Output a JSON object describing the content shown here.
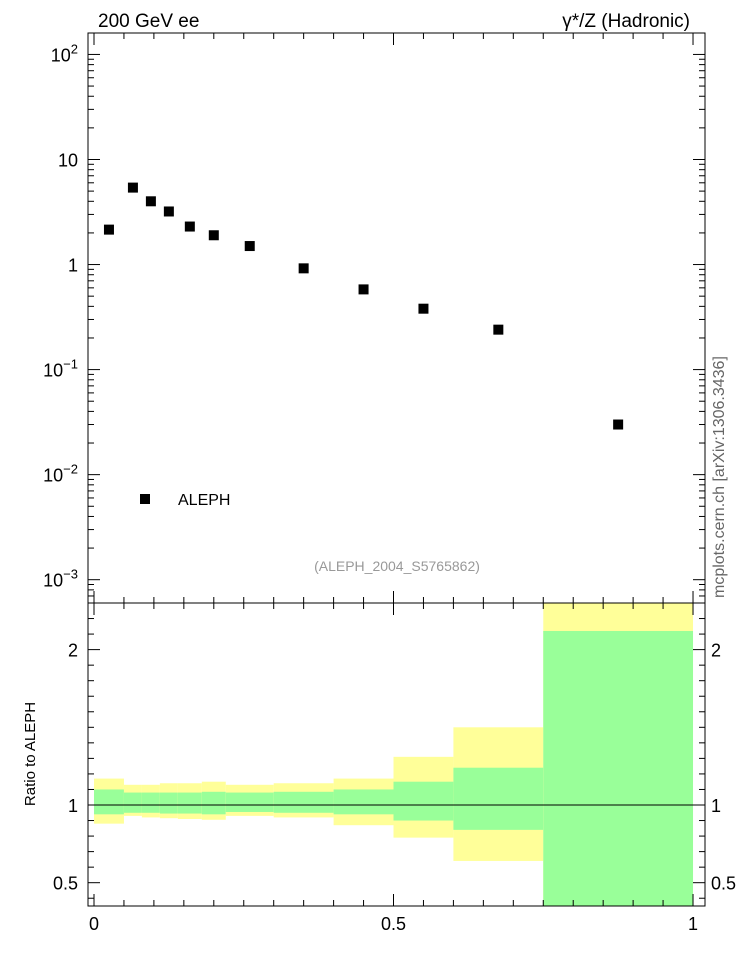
{
  "header": {
    "left": "200 GeV ee",
    "right": "γ*/Z (Hadronic)"
  },
  "side_label": "mcplots.cern.ch [arXiv:1306.3436]",
  "watermark": "(ALEPH_2004_S5765862)",
  "legend": {
    "entry": "ALEPH"
  },
  "ratio_ylabel": "Ratio to ALEPH",
  "colors": {
    "inner_band": "#99ff99",
    "outer_band": "#ffff99",
    "marker": "#000000"
  },
  "chart_data": [
    {
      "type": "scatter",
      "yscale": "log",
      "ylim": [
        0.0006,
        160
      ],
      "xlim": [
        -0.01,
        1.02
      ],
      "y_tick_labels": [
        "10^-3",
        "10^-2",
        "10^-1",
        "1",
        "10",
        "10^2"
      ],
      "series": [
        {
          "name": "ALEPH",
          "x": [
            0.025,
            0.065,
            0.095,
            0.125,
            0.16,
            0.2,
            0.26,
            0.35,
            0.45,
            0.55,
            0.675,
            0.875
          ],
          "y": [
            2.15,
            5.4,
            4.0,
            3.2,
            2.3,
            1.9,
            1.5,
            0.92,
            0.58,
            0.38,
            0.24,
            0.03
          ]
        }
      ]
    },
    {
      "type": "area",
      "ylabel": "Ratio to ALEPH",
      "ylim": [
        0.35,
        2.3
      ],
      "xlim": [
        -0.01,
        1.02
      ],
      "x_tick_labels": [
        "0",
        "0.5",
        "1"
      ],
      "y_tick_labels": [
        "0.5",
        "1",
        "2"
      ],
      "bins": [
        {
          "x0": 0.0,
          "x1": 0.05,
          "inner": [
            0.94,
            1.1
          ],
          "outer": [
            0.88,
            1.17
          ]
        },
        {
          "x0": 0.05,
          "x1": 0.08,
          "inner": [
            0.95,
            1.08
          ],
          "outer": [
            0.93,
            1.13
          ]
        },
        {
          "x0": 0.08,
          "x1": 0.11,
          "inner": [
            0.95,
            1.08
          ],
          "outer": [
            0.92,
            1.13
          ]
        },
        {
          "x0": 0.11,
          "x1": 0.14,
          "inner": [
            0.945,
            1.08
          ],
          "outer": [
            0.915,
            1.14
          ]
        },
        {
          "x0": 0.14,
          "x1": 0.18,
          "inner": [
            0.945,
            1.08
          ],
          "outer": [
            0.91,
            1.14
          ]
        },
        {
          "x0": 0.18,
          "x1": 0.22,
          "inner": [
            0.94,
            1.085
          ],
          "outer": [
            0.905,
            1.15
          ]
        },
        {
          "x0": 0.22,
          "x1": 0.3,
          "inner": [
            0.955,
            1.08
          ],
          "outer": [
            0.93,
            1.13
          ]
        },
        {
          "x0": 0.3,
          "x1": 0.4,
          "inner": [
            0.95,
            1.085
          ],
          "outer": [
            0.92,
            1.14
          ]
        },
        {
          "x0": 0.4,
          "x1": 0.5,
          "inner": [
            0.94,
            1.1
          ],
          "outer": [
            0.87,
            1.17
          ]
        },
        {
          "x0": 0.5,
          "x1": 0.6,
          "inner": [
            0.9,
            1.15
          ],
          "outer": [
            0.79,
            1.31
          ]
        },
        {
          "x0": 0.6,
          "x1": 0.75,
          "inner": [
            0.84,
            1.24
          ],
          "outer": [
            0.64,
            1.5
          ]
        },
        {
          "x0": 0.75,
          "x1": 1.0,
          "inner": [
            0.35,
            2.12
          ],
          "outer": [
            0.35,
            2.3
          ]
        }
      ],
      "reference_line": 1
    }
  ]
}
